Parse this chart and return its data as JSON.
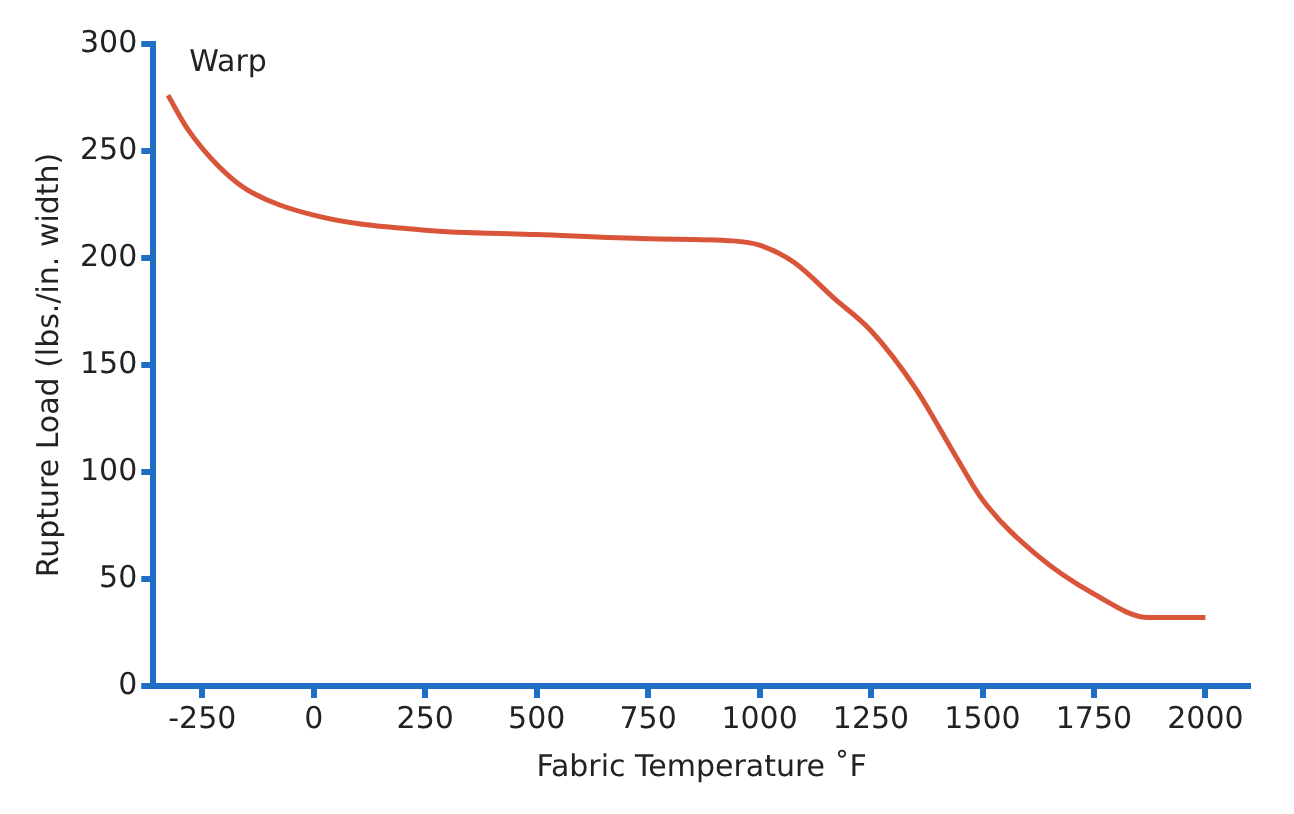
{
  "chart_data": {
    "type": "line",
    "xlabel": "Fabric Temperature ˚F",
    "ylabel": "Rupture Load (lbs./in. width)",
    "annotations": [
      "Warp"
    ],
    "x": [
      -327,
      -282,
      -214,
      -150,
      0,
      250,
      500,
      750,
      940,
      1000,
      1077,
      1168,
      1250,
      1350,
      1441,
      1500,
      1623,
      1750,
      1873,
      2000
    ],
    "series": [
      {
        "color": "#d9553a",
        "values": [
          276,
          260,
          243,
          232,
          220,
          213,
          211,
          209,
          208,
          206,
          198,
          181,
          166,
          139,
          107,
          87,
          61,
          43,
          32,
          32
        ]
      }
    ],
    "xlim": [
      -360,
      2100
    ],
    "xticks": [
      -250,
      0,
      250,
      500,
      750,
      1000,
      1250,
      1500,
      1750,
      2000
    ],
    "ylim": [
      0,
      300
    ],
    "yticks": [
      0,
      50,
      100,
      150,
      200,
      250,
      300
    ],
    "grid": false,
    "legend": false,
    "marker": "none",
    "line_style": "solid"
  }
}
